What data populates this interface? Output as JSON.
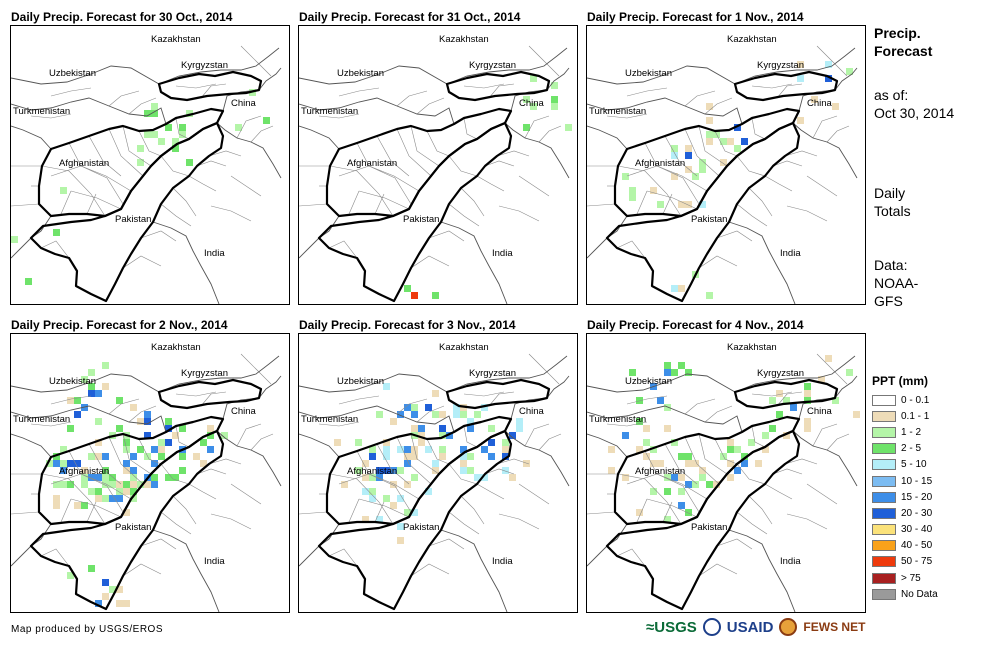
{
  "panels": [
    {
      "title": "Daily Precip. Forecast for 30 Oct., 2014"
    },
    {
      "title": "Daily Precip. Forecast for 31 Oct., 2014"
    },
    {
      "title": "Daily Precip. Forecast for 1 Nov., 2014"
    },
    {
      "title": "Daily Precip. Forecast for 2 Nov., 2014"
    },
    {
      "title": "Daily Precip. Forecast for 3 Nov., 2014"
    },
    {
      "title": "Daily Precip. Forecast for 4 Nov., 2014"
    }
  ],
  "map_labels": {
    "kazakhstan": "Kazakhstan",
    "kyrgyzstan": "Kyrgyzstan",
    "uzbekistan": "Uzbekistan",
    "turkmenistan": "Turkmenistan",
    "china": "China",
    "afghanistan": "Afghanistan",
    "pakistan": "Pakistan",
    "india": "India"
  },
  "side": {
    "title_line1": "Precip.",
    "title_line2": "Forecast",
    "asof_line1": "as of:",
    "asof_line2": "Oct 30, 2014",
    "daily_line1": "Daily",
    "daily_line2": "Totals",
    "data_line1": "Data:",
    "data_line2": "NOAA-",
    "data_line3": "GFS"
  },
  "legend": {
    "title": "PPT (mm)",
    "items": [
      {
        "label": "0 - 0.1",
        "color": "#ffffff"
      },
      {
        "label": "0.1 - 1",
        "color": "#eedcb8"
      },
      {
        "label": "1 - 2",
        "color": "#b4f5a8"
      },
      {
        "label": "2 - 5",
        "color": "#6fe36a"
      },
      {
        "label": "5 - 10",
        "color": "#b4eef8"
      },
      {
        "label": "10 - 15",
        "color": "#7cbcf2"
      },
      {
        "label": "15 - 20",
        "color": "#3d8ee8"
      },
      {
        "label": "20 - 30",
        "color": "#1f5fd8"
      },
      {
        "label": "30 - 40",
        "color": "#fbe27a"
      },
      {
        "label": "40 - 50",
        "color": "#f9a21a"
      },
      {
        "label": "50 - 75",
        "color": "#ee3a0c"
      },
      {
        "label": "> 75",
        "color": "#a82020"
      },
      {
        "label": "No Data",
        "color": "#9a9a9a"
      }
    ]
  },
  "credit": "Map produced by USGS/EROS",
  "logos": {
    "usgs": "USGS",
    "usaid": "USAID",
    "fewsnet": "FEWS NET"
  },
  "precip_patterns": {
    "comment_free": true,
    "panel_0": [
      {
        "level": 2,
        "cells": 14
      },
      {
        "level": 3,
        "cells": 10
      }
    ],
    "panel_1": [
      {
        "level": 2,
        "cells": 8
      },
      {
        "level": 3,
        "cells": 5
      },
      {
        "level": 10,
        "cells": 2
      }
    ],
    "panel_2": [
      {
        "level": 1,
        "cells": 20
      },
      {
        "level": 2,
        "cells": 16
      },
      {
        "level": 4,
        "cells": 6
      },
      {
        "level": 7,
        "cells": 4
      }
    ],
    "panel_3": [
      {
        "level": 1,
        "cells": 30
      },
      {
        "level": 2,
        "cells": 40
      },
      {
        "level": 3,
        "cells": 30
      },
      {
        "level": 6,
        "cells": 20
      },
      {
        "level": 7,
        "cells": 10
      }
    ],
    "panel_4": [
      {
        "level": 1,
        "cells": 35
      },
      {
        "level": 2,
        "cells": 25
      },
      {
        "level": 4,
        "cells": 25
      },
      {
        "level": 6,
        "cells": 15
      },
      {
        "level": 7,
        "cells": 8
      }
    ],
    "panel_5": [
      {
        "level": 1,
        "cells": 30
      },
      {
        "level": 2,
        "cells": 20
      },
      {
        "level": 3,
        "cells": 18
      },
      {
        "level": 6,
        "cells": 10
      }
    ]
  }
}
